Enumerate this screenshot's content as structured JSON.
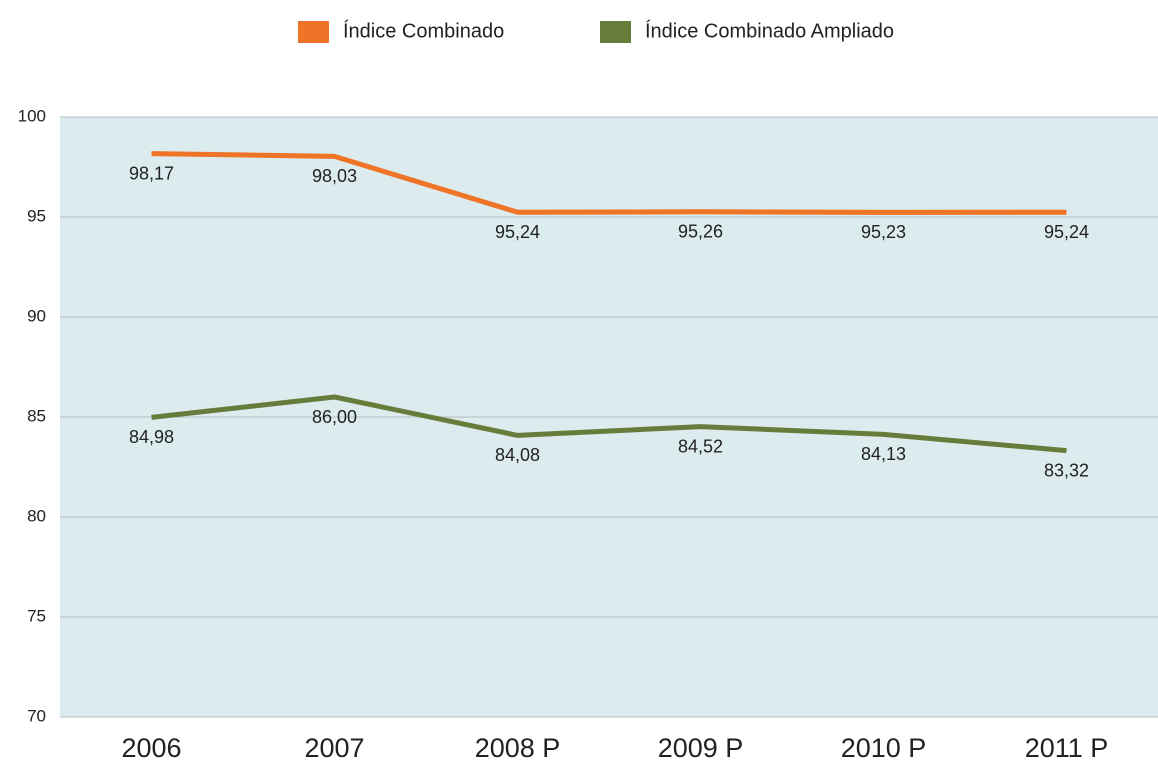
{
  "chart_data": {
    "type": "line",
    "categories": [
      "2006",
      "2007",
      "2008 P",
      "2009 P",
      "2010 P",
      "2011 P"
    ],
    "series": [
      {
        "name": "Índice Combinado",
        "color": "#f07427",
        "values": [
          98.17,
          98.03,
          95.24,
          95.26,
          95.23,
          95.24
        ],
        "value_labels": [
          "98,17",
          "98,03",
          "95,24",
          "95,26",
          "95,23",
          "95,24"
        ]
      },
      {
        "name": "Índice Combinado Ampliado",
        "color": "#677c3a",
        "values": [
          84.98,
          86.0,
          84.08,
          84.52,
          84.13,
          83.32
        ],
        "value_labels": [
          "84,98",
          "86,00",
          "84,08",
          "84,52",
          "84,13",
          "83,32"
        ]
      }
    ],
    "ylim": [
      70,
      100
    ],
    "yticks": [
      70,
      75,
      80,
      85,
      90,
      95,
      100
    ],
    "grid": true,
    "legend": "top"
  }
}
